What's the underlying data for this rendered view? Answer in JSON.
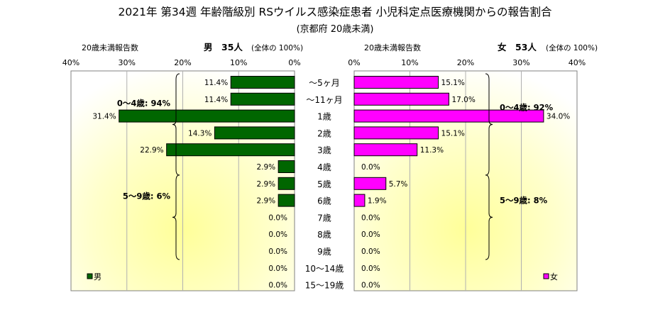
{
  "chart_data": {
    "type": "bar",
    "orientation": "horizontal-population-pyramid",
    "title": "2021年 第34週 年齢階級別 RSウイルス感染症患者 小児科定点医療機関からの報告割合",
    "subtitle": "(京都府 20歳未満)",
    "categories": [
      "～5ヶ月",
      "～11ヶ月",
      "1歳",
      "2歳",
      "3歳",
      "4歳",
      "5歳",
      "6歳",
      "7歳",
      "8歳",
      "9歳",
      "10～14歳",
      "15～19歳"
    ],
    "series": [
      {
        "name": "男",
        "header_sex": "男",
        "header_count": "35人",
        "header_note": "(全体の 100%)",
        "axis_caption": "20歳未満報告数",
        "color": "#006600",
        "values": [
          11.4,
          11.4,
          31.4,
          14.3,
          22.9,
          2.9,
          2.9,
          2.9,
          0.0,
          0.0,
          0.0,
          0.0,
          0.0
        ],
        "value_labels": [
          "11.4%",
          "11.4%",
          "31.4%",
          "14.3%",
          "22.9%",
          "2.9%",
          "2.9%",
          "2.9%",
          "0.0%",
          "0.0%",
          "0.0%",
          "0.0%",
          "0.0%"
        ],
        "brackets": [
          {
            "label": "0～4歳: 94%",
            "from": 0,
            "to": 5
          },
          {
            "label": "5～9歳: 6%",
            "from": 6,
            "to": 10
          }
        ]
      },
      {
        "name": "女",
        "header_sex": "女",
        "header_count": "53人",
        "header_note": "(全体の 100%)",
        "axis_caption": "20歳未満報告数",
        "color": "#ff00ff",
        "values": [
          15.1,
          17.0,
          34.0,
          15.1,
          11.3,
          0.0,
          5.7,
          1.9,
          0.0,
          0.0,
          0.0,
          0.0,
          0.0
        ],
        "value_labels": [
          "15.1%",
          "17.0%",
          "34.0%",
          "15.1%",
          "11.3%",
          "0.0%",
          "5.7%",
          "1.9%",
          "0.0%",
          "0.0%",
          "0.0%",
          "0.0%",
          "0.0%"
        ],
        "brackets": [
          {
            "label": "0～4歳: 92%",
            "from": 0,
            "to": 5
          },
          {
            "label": "5～9歳: 8%",
            "from": 6,
            "to": 10
          }
        ]
      }
    ],
    "xlim": [
      0,
      40
    ],
    "ticks": [
      40,
      30,
      20,
      10,
      0
    ],
    "tick_labels": [
      "40%",
      "30%",
      "20%",
      "10%",
      "0%"
    ],
    "grid": true,
    "legend_placement": "bottom (each panel)",
    "background": "yellow radial gradient"
  }
}
